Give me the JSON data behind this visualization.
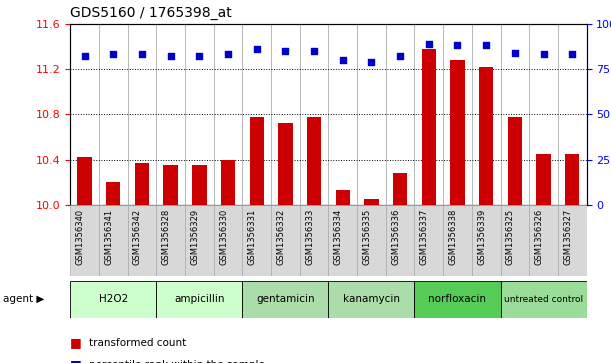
{
  "title": "GDS5160 / 1765398_at",
  "samples": [
    "GSM1356340",
    "GSM1356341",
    "GSM1356342",
    "GSM1356328",
    "GSM1356329",
    "GSM1356330",
    "GSM1356331",
    "GSM1356332",
    "GSM1356333",
    "GSM1356334",
    "GSM1356335",
    "GSM1356336",
    "GSM1356337",
    "GSM1356338",
    "GSM1356339",
    "GSM1356325",
    "GSM1356326",
    "GSM1356327"
  ],
  "transformed_count": [
    10.42,
    10.2,
    10.37,
    10.35,
    10.35,
    10.4,
    10.78,
    10.72,
    10.78,
    10.13,
    10.05,
    10.28,
    11.38,
    11.28,
    11.22,
    10.78,
    10.45,
    10.45
  ],
  "percentile_rank": [
    82,
    83,
    83,
    82,
    82,
    83,
    86,
    85,
    85,
    80,
    79,
    82,
    89,
    88,
    88,
    84,
    83,
    83
  ],
  "agents": [
    {
      "name": "H2O2",
      "start": 0,
      "end": 3,
      "color": "#ccffcc"
    },
    {
      "name": "ampicillin",
      "start": 3,
      "end": 6,
      "color": "#ccffcc"
    },
    {
      "name": "gentamicin",
      "start": 6,
      "end": 9,
      "color": "#aaddaa"
    },
    {
      "name": "kanamycin",
      "start": 9,
      "end": 12,
      "color": "#aaddaa"
    },
    {
      "name": "norfloxacin",
      "start": 12,
      "end": 15,
      "color": "#55cc55"
    },
    {
      "name": "untreated control",
      "start": 15,
      "end": 18,
      "color": "#99dd99"
    }
  ],
  "ylim_left": [
    10.0,
    11.6
  ],
  "ylim_right": [
    0,
    100
  ],
  "yticks_left": [
    10.0,
    10.4,
    10.8,
    11.2,
    11.6
  ],
  "yticks_right": [
    0,
    25,
    50,
    75,
    100
  ],
  "bar_color": "#cc0000",
  "dot_color": "#0000cc",
  "cell_color": "#d8d8d8",
  "cell_edge_color": "#aaaaaa"
}
